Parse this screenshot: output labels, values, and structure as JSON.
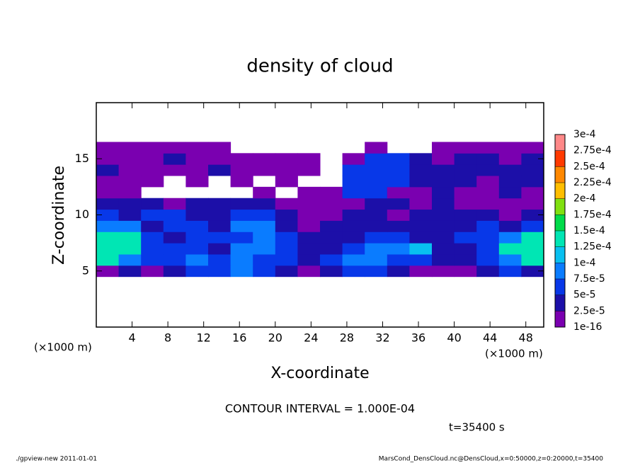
{
  "chart_data": {
    "type": "heatmap",
    "title": "density of cloud",
    "x_label": "X-coordinate",
    "y_label": "Z-coordinate",
    "x_unit": "(×1000 m)",
    "y_unit": "(×1000 m)",
    "annotation": "CONTOUR INTERVAL = 1.000E-04",
    "time_label": "t=35400 s",
    "footer_left": "./gpview-new   2011-01-01",
    "footer_right": "MarsCond_DensCloud.nc@DensCloud,x=0:50000,z=0:20000,t=35400",
    "xlim": [
      0,
      50
    ],
    "ylim": [
      0,
      20
    ],
    "xticks": [
      4,
      8,
      12,
      16,
      20,
      24,
      28,
      32,
      36,
      40,
      44,
      48
    ],
    "yticks": [
      5,
      10,
      15
    ],
    "x": [
      1.25,
      3.75,
      6.25,
      8.75,
      11.25,
      13.75,
      16.25,
      18.75,
      21.25,
      23.75,
      26.25,
      28.75,
      31.25,
      33.75,
      36.25,
      38.75,
      41.25,
      43.75,
      46.25,
      48.75
    ],
    "z": [
      5,
      6,
      7,
      8,
      9,
      10,
      11,
      12,
      13,
      14,
      15,
      16
    ],
    "values": [
      [
        1e-05,
        3e-05,
        1e-05,
        3e-05,
        6e-05,
        6e-05,
        9e-05,
        6e-05,
        3e-05,
        1e-05,
        3e-05,
        6e-05,
        6e-05,
        3e-05,
        1e-05,
        1e-05,
        1e-05,
        3e-05,
        6e-05,
        3e-05
      ],
      [
        0.00014,
        9e-05,
        6e-05,
        6e-05,
        9e-05,
        6e-05,
        9e-05,
        6e-05,
        6e-05,
        3e-05,
        6e-05,
        9e-05,
        9e-05,
        6e-05,
        6e-05,
        3e-05,
        3e-05,
        6e-05,
        9e-05,
        0.00014
      ],
      [
        0.00014,
        0.00014,
        6e-05,
        6e-05,
        6e-05,
        3e-05,
        9e-05,
        9e-05,
        6e-05,
        3e-05,
        3e-05,
        6e-05,
        9e-05,
        9e-05,
        0.00011,
        3e-05,
        3e-05,
        6e-05,
        0.00014,
        0.00014
      ],
      [
        0.00014,
        0.00014,
        6e-05,
        3e-05,
        6e-05,
        6e-05,
        6e-05,
        9e-05,
        6e-05,
        3e-05,
        3e-05,
        3e-05,
        6e-05,
        6e-05,
        3e-05,
        3e-05,
        6e-05,
        6e-05,
        9e-05,
        0.00014
      ],
      [
        9e-05,
        9e-05,
        3e-05,
        6e-05,
        6e-05,
        3e-05,
        9e-05,
        9e-05,
        3e-05,
        1e-05,
        3e-05,
        3e-05,
        3e-05,
        3e-05,
        3e-05,
        3e-05,
        3e-05,
        6e-05,
        3e-05,
        6e-05
      ],
      [
        6e-05,
        3e-05,
        6e-05,
        6e-05,
        3e-05,
        3e-05,
        6e-05,
        6e-05,
        3e-05,
        1e-05,
        1e-05,
        3e-05,
        3e-05,
        1e-05,
        3e-05,
        3e-05,
        3e-05,
        3e-05,
        1e-05,
        3e-05
      ],
      [
        3e-05,
        3e-05,
        3e-05,
        1e-05,
        3e-05,
        3e-05,
        3e-05,
        3e-05,
        1e-05,
        1e-05,
        1e-05,
        1e-05,
        3e-05,
        3e-05,
        1e-05,
        3e-05,
        1e-05,
        1e-05,
        1e-05,
        1e-05
      ],
      [
        1e-05,
        1e-05,
        null,
        null,
        null,
        null,
        null,
        1e-05,
        null,
        1e-05,
        1e-05,
        6e-05,
        6e-05,
        1e-05,
        1e-05,
        3e-05,
        1e-05,
        1e-05,
        3e-05,
        1e-05
      ],
      [
        1e-05,
        1e-05,
        1e-05,
        null,
        1e-05,
        null,
        1e-05,
        null,
        1e-05,
        null,
        null,
        6e-05,
        6e-05,
        6e-05,
        3e-05,
        3e-05,
        3e-05,
        1e-05,
        3e-05,
        3e-05
      ],
      [
        3e-05,
        1e-05,
        1e-05,
        1e-05,
        1e-05,
        3e-05,
        1e-05,
        1e-05,
        1e-05,
        1e-05,
        null,
        6e-05,
        6e-05,
        6e-05,
        3e-05,
        3e-05,
        3e-05,
        3e-05,
        3e-05,
        3e-05
      ],
      [
        1e-05,
        1e-05,
        1e-05,
        3e-05,
        1e-05,
        1e-05,
        1e-05,
        1e-05,
        1e-05,
        1e-05,
        null,
        1e-05,
        6e-05,
        6e-05,
        3e-05,
        1e-05,
        3e-05,
        3e-05,
        1e-05,
        3e-05
      ],
      [
        1e-05,
        1e-05,
        1e-05,
        1e-05,
        1e-05,
        1e-05,
        null,
        null,
        null,
        null,
        null,
        null,
        1e-05,
        null,
        null,
        1e-05,
        1e-05,
        1e-05,
        1e-05,
        1e-05
      ]
    ],
    "levels": [
      {
        "value": 1e-16,
        "label": "1e-16"
      },
      {
        "value": 2.5e-05,
        "label": "2.5e-5"
      },
      {
        "value": 5e-05,
        "label": "5e-5"
      },
      {
        "value": 7.5e-05,
        "label": "7.5e-5"
      },
      {
        "value": 0.0001,
        "label": "1e-4"
      },
      {
        "value": 0.000125,
        "label": "1.25e-4"
      },
      {
        "value": 0.00015,
        "label": "1.5e-4"
      },
      {
        "value": 0.000175,
        "label": "1.75e-4"
      },
      {
        "value": 0.0002,
        "label": "2e-4"
      },
      {
        "value": 0.000225,
        "label": "2.25e-4"
      },
      {
        "value": 0.00025,
        "label": "2.5e-4"
      },
      {
        "value": 0.000275,
        "label": "2.75e-4"
      },
      {
        "value": 0.0003,
        "label": "3e-4"
      }
    ],
    "colors": [
      "#7a00b0",
      "#1c0fa8",
      "#0838e8",
      "#0a7cff",
      "#08c0f0",
      "#00e6b4",
      "#00dc4a",
      "#80e010",
      "#ffbe00",
      "#ff8800",
      "#ff3a00",
      "#ff8888"
    ]
  }
}
